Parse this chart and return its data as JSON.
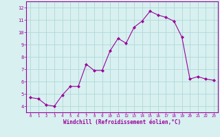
{
  "x": [
    0,
    1,
    2,
    3,
    4,
    5,
    6,
    7,
    8,
    9,
    10,
    11,
    12,
    13,
    14,
    15,
    16,
    17,
    18,
    19,
    20,
    21,
    22,
    23
  ],
  "y": [
    4.7,
    4.6,
    4.1,
    4.0,
    4.9,
    5.6,
    5.6,
    7.4,
    6.9,
    6.9,
    8.5,
    9.5,
    9.1,
    10.4,
    10.9,
    11.7,
    11.4,
    11.2,
    10.9,
    9.6,
    6.2,
    6.4,
    6.2,
    6.1
  ],
  "line_color": "#990099",
  "marker": "D",
  "marker_size": 2.0,
  "bg_color": "#d8f0f0",
  "grid_color": "#b0d8d8",
  "xlabel": "Windchill (Refroidissement éolien,°C)",
  "tick_color": "#990099",
  "spine_color": "#990099",
  "ylim": [
    3.5,
    12.5
  ],
  "xlim": [
    -0.5,
    23.5
  ],
  "yticks": [
    4,
    5,
    6,
    7,
    8,
    9,
    10,
    11,
    12
  ],
  "xticks": [
    0,
    1,
    2,
    3,
    4,
    5,
    6,
    7,
    8,
    9,
    10,
    11,
    12,
    13,
    14,
    15,
    16,
    17,
    18,
    19,
    20,
    21,
    22,
    23
  ]
}
